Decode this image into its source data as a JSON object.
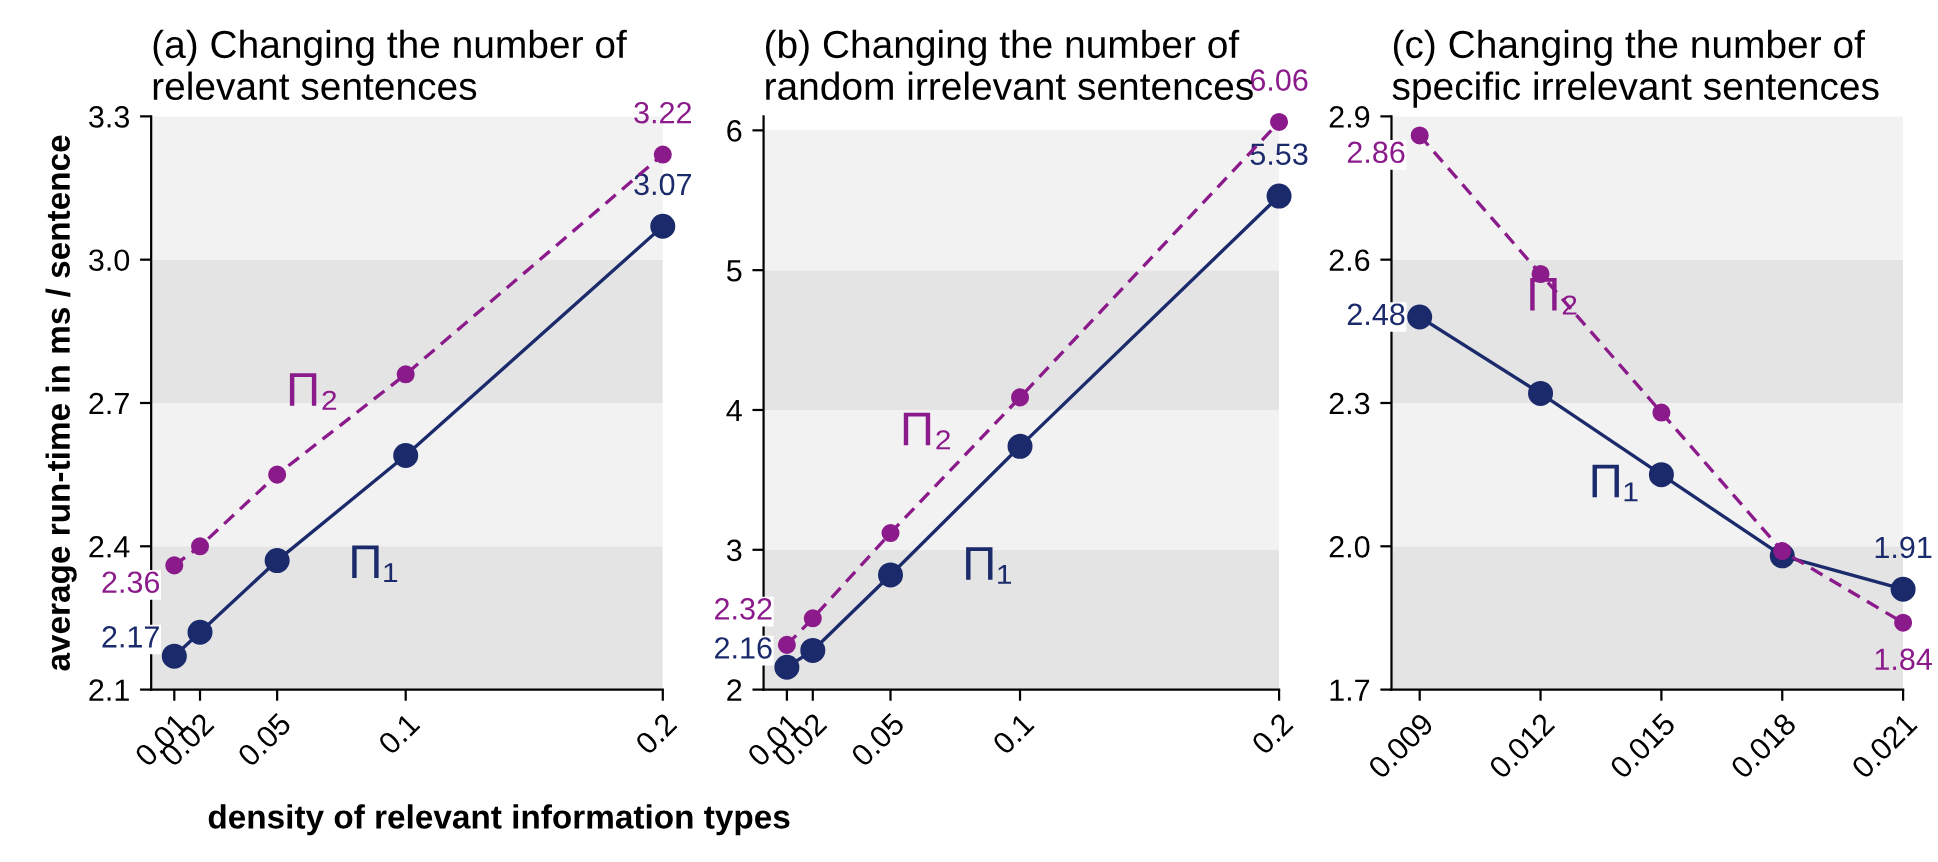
{
  "chart_data": [
    {
      "type": "line",
      "title": "(a) Changing the number of\nrelevant sentences",
      "xlabel": "density of relevant information types",
      "ylabel": "average run-time in ms / sentence",
      "x": [
        0.01,
        0.02,
        0.05,
        0.1,
        0.2
      ],
      "xlim": [
        0.001,
        0.2
      ],
      "xticks": [
        0.01,
        0.02,
        0.05,
        0.1,
        0.2
      ],
      "ylim": [
        2.1,
        3.3
      ],
      "yticks": [
        {
          "value": 2.1,
          "label": "2.1"
        },
        2.4,
        2.7,
        {
          "value": 3.0,
          "label": "3.0"
        },
        3.3
      ],
      "series": [
        {
          "name": "Π₁",
          "color": "#1b2a6b",
          "values": [
            2.17,
            2.22,
            2.37,
            2.59,
            3.07
          ],
          "value_labels": [
            "2.17",
            null,
            null,
            null,
            "3.07"
          ],
          "line_style": "solid",
          "marker": "circle"
        },
        {
          "name": "Π₂",
          "color": "#8b1a8b",
          "values": [
            2.36,
            2.4,
            2.55,
            2.76,
            3.22
          ],
          "value_labels": [
            "2.36",
            null,
            null,
            null,
            "3.22"
          ],
          "line_style": "dashed",
          "marker": "circle"
        }
      ],
      "bands": [
        {
          "axis": "y",
          "from": 2.1,
          "to": 2.4,
          "color": "#e4e4e4"
        },
        {
          "axis": "y",
          "from": 2.4,
          "to": 2.7,
          "color": "#f2f2f2"
        },
        {
          "axis": "y",
          "from": 2.7,
          "to": 3.0,
          "color": "#e4e4e4"
        },
        {
          "axis": "y",
          "from": 3.0,
          "to": 3.3,
          "color": "#f2f2f2"
        }
      ],
      "grid": false,
      "legend": false
    },
    {
      "type": "line",
      "title": "(b) Changing the number of\nrandom irrelevant sentences",
      "x": [
        0.01,
        0.02,
        0.05,
        0.1,
        0.2
      ],
      "xlim": [
        0.001,
        0.2
      ],
      "xticks": [
        0.01,
        0.02,
        0.05,
        0.1,
        0.2
      ],
      "ylim": [
        2,
        6.1
      ],
      "yticks": [
        2,
        3,
        4,
        5,
        6
      ],
      "series": [
        {
          "name": "Π₁",
          "color": "#1b2a6b",
          "values": [
            2.16,
            2.28,
            2.82,
            3.74,
            5.53
          ],
          "value_labels": [
            "2.16",
            null,
            null,
            null,
            "5.53"
          ],
          "line_style": "solid",
          "marker": "circle"
        },
        {
          "name": "Π₂",
          "color": "#8b1a8b",
          "values": [
            2.32,
            2.51,
            3.12,
            4.09,
            6.06
          ],
          "value_labels": [
            "2.32",
            null,
            null,
            null,
            "6.06"
          ],
          "line_style": "dashed",
          "marker": "circle"
        }
      ],
      "bands": [
        {
          "axis": "y",
          "from": 2,
          "to": 3,
          "color": "#e4e4e4"
        },
        {
          "axis": "y",
          "from": 3,
          "to": 4,
          "color": "#f2f2f2"
        },
        {
          "axis": "y",
          "from": 4,
          "to": 5,
          "color": "#e4e4e4"
        },
        {
          "axis": "y",
          "from": 5,
          "to": 6,
          "color": "#f2f2f2"
        }
      ],
      "grid": false,
      "legend": false
    },
    {
      "type": "line",
      "title": "(c) Changing the number of\nspecific irrelevant sentences",
      "x": [
        0.009,
        0.012,
        0.015,
        0.018,
        0.021
      ],
      "xlim": [
        0.0083,
        0.021
      ],
      "xticks": [
        0.009,
        0.012,
        0.015,
        0.018,
        0.021
      ],
      "ylim": [
        1.7,
        2.9
      ],
      "yticks": [
        1.7,
        {
          "value": 2.0,
          "label": "2.0"
        },
        2.3,
        2.6,
        2.9
      ],
      "series": [
        {
          "name": "Π₁",
          "color": "#1b2a6b",
          "values": [
            2.48,
            2.32,
            2.15,
            1.98,
            1.91
          ],
          "value_labels": [
            "2.48",
            null,
            null,
            null,
            "1.91"
          ],
          "line_style": "solid",
          "marker": "circle"
        },
        {
          "name": "Π₂",
          "color": "#8b1a8b",
          "values": [
            2.86,
            2.57,
            2.28,
            1.99,
            1.84
          ],
          "value_labels": [
            "2.86",
            null,
            null,
            null,
            "1.84"
          ],
          "line_style": "dashed",
          "marker": "circle"
        }
      ],
      "bands": [
        {
          "axis": "y",
          "from": 1.7,
          "to": 2.0,
          "color": "#e4e4e4"
        },
        {
          "axis": "y",
          "from": 2.0,
          "to": 2.3,
          "color": "#f2f2f2"
        },
        {
          "axis": "y",
          "from": 2.3,
          "to": 2.6,
          "color": "#e4e4e4"
        },
        {
          "axis": "y",
          "from": 2.6,
          "to": 2.9,
          "color": "#f2f2f2"
        }
      ],
      "grid": false,
      "legend": false
    }
  ]
}
